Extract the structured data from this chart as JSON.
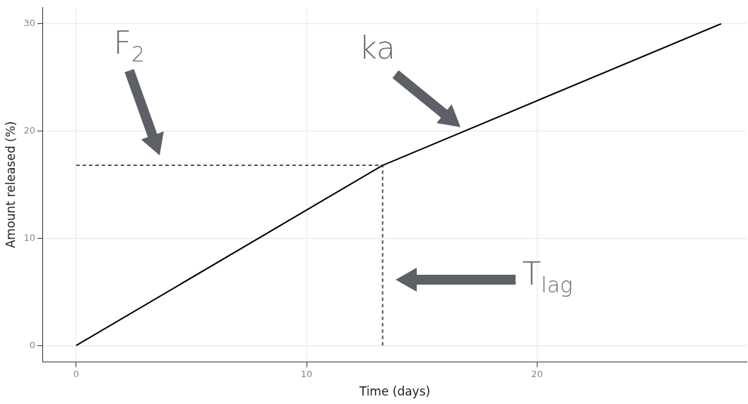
{
  "chart_data": {
    "type": "line",
    "xlabel": "Time (days)",
    "ylabel": "Amount released (%)",
    "xlim": [
      -1.44,
      29.1
    ],
    "ylim": [
      -1.5,
      31.5
    ],
    "xticks": [
      0,
      10,
      20
    ],
    "yticks": [
      0,
      10,
      20,
      30
    ],
    "grid": true,
    "legend": false,
    "marker": "none",
    "series": [
      {
        "type": "line",
        "color": "#000000",
        "line_style": "solid",
        "x": [
          0,
          13.3,
          28
        ],
        "values": [
          0,
          16.8,
          30
        ]
      },
      {
        "type": "line",
        "color": "#555555",
        "line_style": "dashed",
        "x": [
          0,
          13.3
        ],
        "values": [
          16.8,
          16.8
        ]
      },
      {
        "type": "line",
        "color": "#555555",
        "line_style": "dashed",
        "x": [
          13.3,
          13.3
        ],
        "values": [
          0,
          16.8
        ]
      }
    ],
    "annotations": [
      "F$_{2}$",
      "ka",
      "T$_{lag}$"
    ]
  }
}
